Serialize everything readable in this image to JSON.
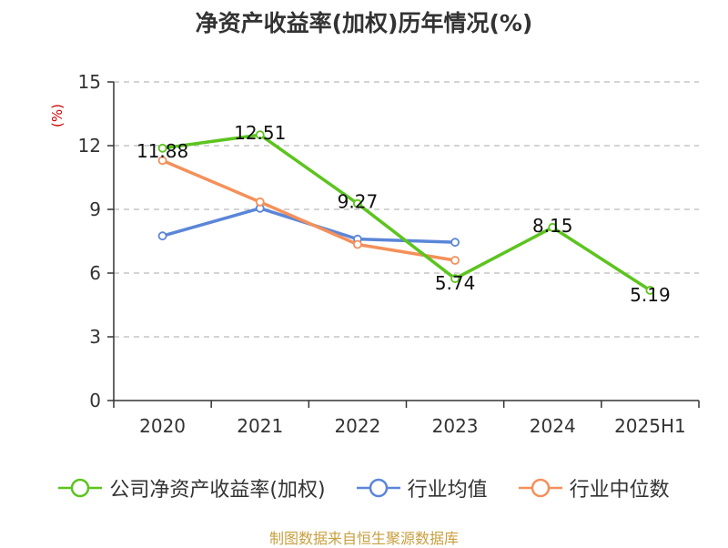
{
  "chart_data": {
    "type": "line",
    "title": "净资产收益率(加权)历年情况(%)",
    "ylabel": "(%)",
    "xlabel": "",
    "categories": [
      "2020",
      "2021",
      "2022",
      "2023",
      "2024",
      "2025H1"
    ],
    "ylim": [
      0,
      15
    ],
    "yticks": [
      0,
      3,
      6,
      9,
      12,
      15
    ],
    "grid": true,
    "legend_position": "bottom",
    "series": [
      {
        "name": "公司净资产收益率(加权)",
        "color": "#5cc41e",
        "values": [
          11.88,
          12.51,
          9.27,
          5.74,
          8.15,
          5.19
        ],
        "labels": [
          "11.88",
          "12.51",
          "9.27",
          "5.74",
          "8.15",
          "5.19"
        ]
      },
      {
        "name": "行业均值",
        "color": "#5b86d8",
        "values": [
          7.75,
          9.05,
          7.6,
          7.45,
          null,
          null
        ]
      },
      {
        "name": "行业中位数",
        "color": "#f4905a",
        "values": [
          11.3,
          9.35,
          7.35,
          6.6,
          null,
          null
        ]
      }
    ]
  },
  "source": "制图数据来自恒生聚源数据库"
}
